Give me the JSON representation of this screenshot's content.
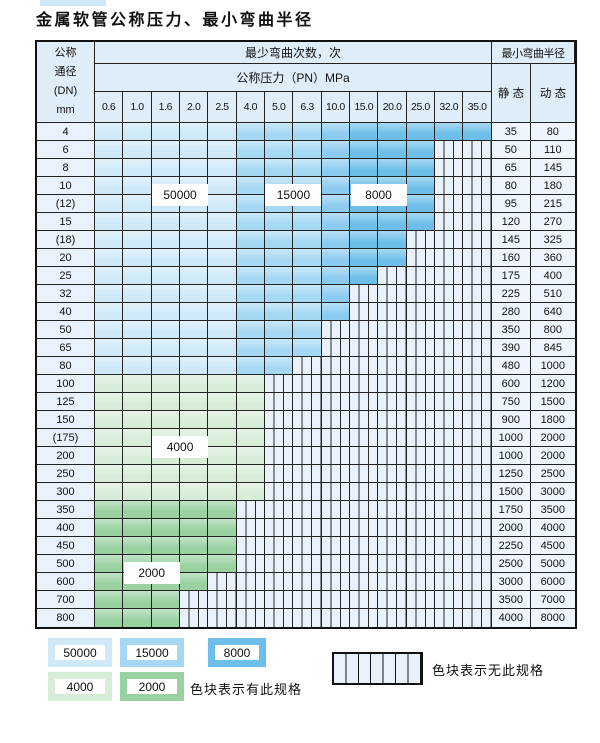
{
  "title": "金属软管公称压力、最小弯曲半径",
  "table": {
    "corner_lines": [
      "公称",
      "通径",
      "(DN)",
      "mm"
    ],
    "header_cycles": "最少弯曲次数，次",
    "header_pressure": "公称压力（PN）MPa",
    "header_radius": "最小弯曲半径",
    "static_label": "静 态",
    "dynamic_label": "动 态",
    "pressure_columns": [
      "0.6",
      "1.0",
      "1.6",
      "2.0",
      "2.5",
      "4.0",
      "5.0",
      "6.3",
      "10.0",
      "15.0",
      "20.0",
      "25.0",
      "32.0",
      "35.0"
    ],
    "rows": [
      {
        "dn": "4",
        "max": 13,
        "zone": "blue",
        "static": "35",
        "dynamic": "80"
      },
      {
        "dn": "6",
        "max": 11,
        "zone": "blue",
        "static": "50",
        "dynamic": "110"
      },
      {
        "dn": "8",
        "max": 11,
        "zone": "blue",
        "static": "65",
        "dynamic": "145"
      },
      {
        "dn": "10",
        "max": 11,
        "zone": "blue",
        "static": "80",
        "dynamic": "180"
      },
      {
        "dn": "(12)",
        "max": 11,
        "zone": "blue",
        "static": "95",
        "dynamic": "215"
      },
      {
        "dn": "15",
        "max": 11,
        "zone": "blue",
        "static": "120",
        "dynamic": "270"
      },
      {
        "dn": "(18)",
        "max": 10,
        "zone": "blue",
        "static": "145",
        "dynamic": "325"
      },
      {
        "dn": "20",
        "max": 10,
        "zone": "blue",
        "static": "160",
        "dynamic": "360"
      },
      {
        "dn": "25",
        "max": 9,
        "zone": "blue",
        "static": "175",
        "dynamic": "400"
      },
      {
        "dn": "32",
        "max": 8,
        "zone": "blue",
        "static": "225",
        "dynamic": "510"
      },
      {
        "dn": "40",
        "max": 8,
        "zone": "blue",
        "static": "280",
        "dynamic": "640"
      },
      {
        "dn": "50",
        "max": 7,
        "zone": "blue",
        "static": "350",
        "dynamic": "800"
      },
      {
        "dn": "65",
        "max": 7,
        "zone": "blue",
        "static": "390",
        "dynamic": "845"
      },
      {
        "dn": "80",
        "max": 6,
        "zone": "blue",
        "static": "480",
        "dynamic": "1000"
      },
      {
        "dn": "100",
        "max": 5,
        "zone": "g4",
        "static": "600",
        "dynamic": "1200"
      },
      {
        "dn": "125",
        "max": 5,
        "zone": "g4",
        "static": "750",
        "dynamic": "1500"
      },
      {
        "dn": "150",
        "max": 5,
        "zone": "g4",
        "static": "900",
        "dynamic": "1800"
      },
      {
        "dn": "(175)",
        "max": 5,
        "zone": "g4",
        "static": "1000",
        "dynamic": "2000"
      },
      {
        "dn": "200",
        "max": 5,
        "zone": "g4",
        "static": "1000",
        "dynamic": "2000"
      },
      {
        "dn": "250",
        "max": 5,
        "zone": "g4",
        "static": "1250",
        "dynamic": "2500"
      },
      {
        "dn": "300",
        "max": 5,
        "zone": "g4",
        "static": "1500",
        "dynamic": "3000"
      },
      {
        "dn": "350",
        "max": 4,
        "zone": "g2",
        "static": "1750",
        "dynamic": "3500"
      },
      {
        "dn": "400",
        "max": 4,
        "zone": "g2",
        "static": "2000",
        "dynamic": "4000"
      },
      {
        "dn": "450",
        "max": 4,
        "zone": "g2",
        "static": "2250",
        "dynamic": "4500"
      },
      {
        "dn": "500",
        "max": 4,
        "zone": "g2",
        "static": "2500",
        "dynamic": "5000"
      },
      {
        "dn": "600",
        "max": 3,
        "zone": "g2",
        "static": "3000",
        "dynamic": "6000"
      },
      {
        "dn": "700",
        "max": 2,
        "zone": "g2",
        "static": "3500",
        "dynamic": "7000"
      },
      {
        "dn": "800",
        "max": 2,
        "zone": "g2",
        "static": "4000",
        "dynamic": "8000"
      }
    ],
    "cycle_labels": [
      {
        "text": "50000",
        "col": 2,
        "colspan": 2,
        "row": 3,
        "rowspan": 2
      },
      {
        "text": "15000",
        "col": 6,
        "colspan": 2,
        "row": 3,
        "rowspan": 2
      },
      {
        "text": "8000",
        "col": 9,
        "colspan": 2,
        "row": 3,
        "rowspan": 2
      },
      {
        "text": "4000",
        "col": 2,
        "colspan": 2,
        "row": 17,
        "rowspan": 2
      },
      {
        "text": "2000",
        "col": 1,
        "colspan": 2,
        "row": 24,
        "rowspan": 2
      }
    ]
  },
  "legend": {
    "swatches": [
      {
        "label": "50000",
        "color_key": "c50000"
      },
      {
        "label": "15000",
        "color_key": "c15000"
      },
      {
        "label": "8000",
        "color_key": "c8000"
      },
      {
        "label": "4000",
        "color_key": "c4000"
      },
      {
        "label": "2000",
        "color_key": "c2000"
      }
    ],
    "available_text": "色块表示有此规格",
    "unavailable_text": "色块表示无此规格"
  },
  "colors": {
    "c50000": "#cfe9f9",
    "c15000": "#a5d8f3",
    "c8000": "#6dbfea",
    "c8000_light": "#8ccbf0",
    "c4000": "#d8edd8",
    "c2000": "#99d1a1",
    "hatch_bg": "#e9f2fb",
    "head_bg": "#dfedf9",
    "label_bg": "#e9f2fb",
    "value_bg": "#eef5fc"
  }
}
